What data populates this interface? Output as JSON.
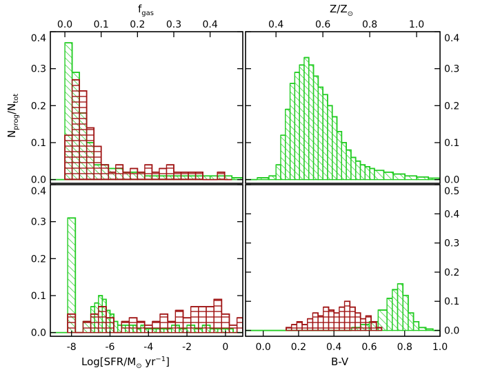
{
  "colors": {
    "green": "#22cc22",
    "red": "#a01515",
    "axis": "#000000"
  },
  "labels": {
    "ylabel_main": "N",
    "ylabel_sub": "prog",
    "ylabel_slash": "/N",
    "ylabel_sub2": "tot",
    "top_left_main": "f",
    "top_left_sub": "gas",
    "top_right_main": "Z/Z",
    "top_right_sun": "⊙",
    "bottom_left": "Log[SFR/M",
    "bottom_left_sun": "⊙",
    "bottom_left_tail": " yr",
    "bottom_left_exp": "−1",
    "bottom_left_close": "]",
    "bottom_right": "B-V"
  },
  "chart_data": [
    {
      "panel": "top-left",
      "type": "bar",
      "xlabel_top": "f_gas",
      "ylabel": "N_prog/N_tot",
      "top_ticks": [
        "0.0",
        "0.1",
        "0.2",
        "0.3",
        "0.4"
      ],
      "top_tick_values": [
        0.0,
        0.1,
        0.2,
        0.3,
        0.4
      ],
      "xlim_top": [
        -0.04,
        0.49
      ],
      "ylim": [
        -0.01,
        0.4
      ],
      "yticks": [
        "0.0",
        "0.1",
        "0.2",
        "0.3",
        "0.4"
      ],
      "ytick_values": [
        0.0,
        0.1,
        0.2,
        0.3,
        0.4
      ],
      "series": [
        {
          "color": "green",
          "hatch": "diagonal",
          "edges": [
            -0.04,
            0.0,
            0.02,
            0.04,
            0.06,
            0.08,
            0.1,
            0.12,
            0.14,
            0.16,
            0.18,
            0.2,
            0.22,
            0.24,
            0.26,
            0.28,
            0.3,
            0.32,
            0.34,
            0.36,
            0.38,
            0.4,
            0.42,
            0.44,
            0.46,
            0.49
          ],
          "values": [
            0.0,
            0.37,
            0.29,
            0.18,
            0.1,
            0.04,
            0.04,
            0.03,
            0.03,
            0.02,
            0.02,
            0.02,
            0.01,
            0.01,
            0.01,
            0.01,
            0.01,
            0.01,
            0.01,
            0.01,
            0.01,
            0.01,
            0.01,
            0.01,
            0.005
          ]
        },
        {
          "color": "red",
          "hatch": "horizontal",
          "edges": [
            0.0,
            0.02,
            0.04,
            0.06,
            0.08,
            0.1,
            0.12,
            0.14,
            0.16,
            0.18,
            0.2,
            0.22,
            0.24,
            0.26,
            0.28,
            0.3,
            0.32,
            0.34,
            0.36,
            0.38,
            0.4,
            0.42,
            0.44,
            0.46
          ],
          "values": [
            0.12,
            0.27,
            0.24,
            0.14,
            0.09,
            0.04,
            0.02,
            0.04,
            0.02,
            0.03,
            0.02,
            0.04,
            0.02,
            0.03,
            0.04,
            0.02,
            0.02,
            0.02,
            0.02,
            0.0,
            0.0,
            0.02,
            0.0
          ]
        }
      ]
    },
    {
      "panel": "top-right",
      "type": "bar",
      "xlabel_top": "Z/Z_sun",
      "top_ticks": [
        "0.4",
        "0.6",
        "0.8",
        "1.0"
      ],
      "top_tick_values": [
        0.4,
        0.6,
        0.8,
        1.0
      ],
      "xlim_top": [
        0.27,
        1.1
      ],
      "ylim": [
        -0.01,
        0.4
      ],
      "yticks_right": [
        "0.0",
        "0.1",
        "0.2",
        "0.3",
        "0.4"
      ],
      "ytick_values": [
        0.0,
        0.1,
        0.2,
        0.3,
        0.4
      ],
      "series": [
        {
          "color": "green",
          "hatch": "diagonal",
          "edges": [
            0.27,
            0.32,
            0.37,
            0.4,
            0.42,
            0.44,
            0.46,
            0.48,
            0.5,
            0.52,
            0.54,
            0.56,
            0.58,
            0.6,
            0.62,
            0.64,
            0.66,
            0.68,
            0.7,
            0.72,
            0.74,
            0.76,
            0.78,
            0.8,
            0.82,
            0.86,
            0.9,
            0.95,
            1.0,
            1.05,
            1.1
          ],
          "values": [
            0.0,
            0.005,
            0.01,
            0.04,
            0.12,
            0.19,
            0.26,
            0.29,
            0.31,
            0.33,
            0.31,
            0.28,
            0.25,
            0.23,
            0.2,
            0.17,
            0.13,
            0.1,
            0.08,
            0.06,
            0.05,
            0.04,
            0.035,
            0.03,
            0.025,
            0.02,
            0.015,
            0.01,
            0.007,
            0.004
          ]
        }
      ]
    },
    {
      "panel": "bottom-left",
      "type": "bar",
      "xlabel": "Log[SFR/M_sun yr^-1]",
      "xticks": [
        "-8",
        "-6",
        "-4",
        "-2",
        "0"
      ],
      "xtick_values": [
        -8,
        -6,
        -4,
        -2,
        0
      ],
      "xlim": [
        -9.1,
        0.9
      ],
      "ylim": [
        -0.01,
        0.4
      ],
      "yticks": [
        "0.0",
        "0.1",
        "0.2",
        "0.3",
        "0.4"
      ],
      "ytick_values": [
        0.0,
        0.1,
        0.2,
        0.3,
        0.4
      ],
      "series": [
        {
          "color": "green",
          "hatch": "diagonal",
          "edges": [
            -9.1,
            -8.2,
            -7.8,
            -7.4,
            -7.0,
            -6.8,
            -6.6,
            -6.4,
            -6.2,
            -6.0,
            -5.8,
            -5.6,
            -5.4,
            -5.2,
            -5.0,
            -4.8,
            -4.6,
            -4.4,
            -4.2,
            -4.0,
            -3.6,
            -3.2,
            -2.8,
            -2.4,
            -2.0,
            -1.6,
            -1.2,
            -0.8,
            -0.4,
            0.0,
            0.4,
            0.9
          ],
          "values": [
            0.0,
            0.31,
            0.0,
            0.03,
            0.07,
            0.08,
            0.1,
            0.09,
            0.06,
            0.05,
            0.03,
            0.02,
            0.02,
            0.02,
            0.02,
            0.02,
            0.01,
            0.02,
            0.01,
            0.01,
            0.01,
            0.01,
            0.02,
            0.01,
            0.02,
            0.01,
            0.02,
            0.01,
            0.01,
            0.01,
            0.0
          ]
        },
        {
          "color": "red",
          "hatch": "horizontal",
          "edges": [
            -8.2,
            -7.8,
            -7.4,
            -7.0,
            -6.6,
            -6.2,
            -5.8,
            -5.4,
            -5.0,
            -4.6,
            -4.2,
            -3.8,
            -3.4,
            -3.0,
            -2.6,
            -2.2,
            -1.8,
            -1.4,
            -1.0,
            -0.6,
            -0.2,
            0.2,
            0.6,
            0.9
          ],
          "values": [
            0.05,
            0.0,
            0.03,
            0.05,
            0.07,
            0.04,
            0.0,
            0.03,
            0.04,
            0.03,
            0.02,
            0.03,
            0.05,
            0.03,
            0.06,
            0.04,
            0.07,
            0.07,
            0.07,
            0.09,
            0.05,
            0.02,
            0.04
          ]
        }
      ]
    },
    {
      "panel": "bottom-right",
      "type": "bar",
      "xlabel": "B-V",
      "xticks": [
        "0.0",
        "0.2",
        "0.4",
        "0.6",
        "0.8",
        "1.0"
      ],
      "xtick_values": [
        0.0,
        0.2,
        0.4,
        0.6,
        0.8,
        1.0
      ],
      "xlim": [
        -0.1,
        1.0
      ],
      "ylim": [
        -0.02,
        0.5
      ],
      "yticks_right": [
        "0.0",
        "0.1",
        "0.2",
        "0.3",
        "0.4",
        "0.5"
      ],
      "ytick_values": [
        0.0,
        0.1,
        0.2,
        0.3,
        0.4,
        0.5
      ],
      "series": [
        {
          "color": "green",
          "hatch": "diagonal",
          "edges": [
            -0.1,
            0.5,
            0.55,
            0.6,
            0.65,
            0.7,
            0.73,
            0.76,
            0.79,
            0.82,
            0.85,
            0.88,
            0.92,
            0.96,
            1.0
          ],
          "values": [
            0.0,
            0.01,
            0.02,
            0.03,
            0.07,
            0.11,
            0.14,
            0.16,
            0.12,
            0.06,
            0.03,
            0.01,
            0.005,
            0.0
          ]
        },
        {
          "color": "red",
          "hatch": "horizontal",
          "edges": [
            0.13,
            0.16,
            0.19,
            0.22,
            0.25,
            0.28,
            0.31,
            0.34,
            0.37,
            0.4,
            0.43,
            0.46,
            0.49,
            0.52,
            0.55,
            0.58,
            0.61,
            0.64,
            0.67
          ],
          "values": [
            0.01,
            0.02,
            0.03,
            0.02,
            0.04,
            0.06,
            0.05,
            0.08,
            0.07,
            0.06,
            0.08,
            0.1,
            0.08,
            0.06,
            0.04,
            0.05,
            0.03,
            0.01
          ]
        }
      ]
    }
  ]
}
